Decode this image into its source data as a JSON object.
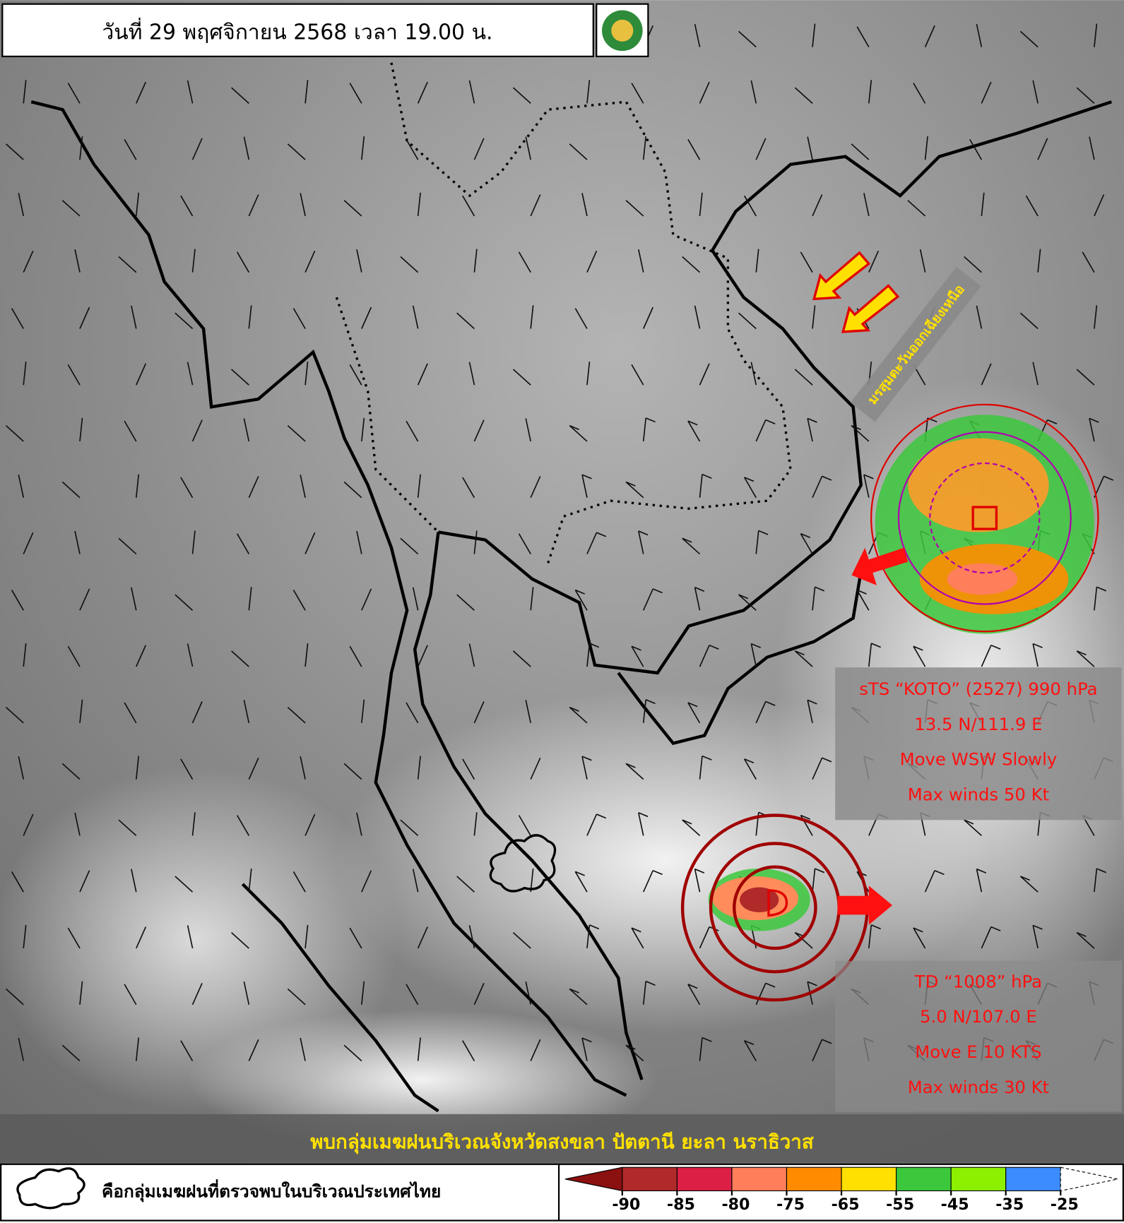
{
  "header": {
    "title": "วันที่ 29 พฤศจิกายน 2568 เวลา 19.00 น."
  },
  "monsoon_label": "มรสุมตะวันออกเฉียงเหนือ",
  "storms": [
    {
      "lines": [
        "sTS “KOTO” (2527) 990 hPa",
        "13.5 N/111.9 E",
        "Move WSW Slowly",
        "Max winds 50 Kt"
      ]
    },
    {
      "lines": [
        "TD “1008” hPa",
        "5.0 N/107.0 E",
        "Move E 10 KTS",
        "Max winds 30 Kt"
      ]
    }
  ],
  "banner": "พบกลุ่มเมฆฝนบริเวณจังหวัดสงขลา ปัตตานี ยะลา นราธิวาส",
  "legend": {
    "text": "คือกลุ่มเมฆฝนที่ตรวจพบในบริเวณประเทศไทย"
  },
  "colorbar": {
    "ticks": [
      -90,
      -85,
      -80,
      -75,
      -65,
      -55,
      -45,
      -35,
      -25
    ],
    "colors": [
      "#8b1010",
      "#b02a2a",
      "#dc1f45",
      "#ff7f5a",
      "#ff8c00",
      "#ffe000",
      "#3cc83c",
      "#8cf000",
      "#3c8cff",
      "#ffffff"
    ]
  }
}
